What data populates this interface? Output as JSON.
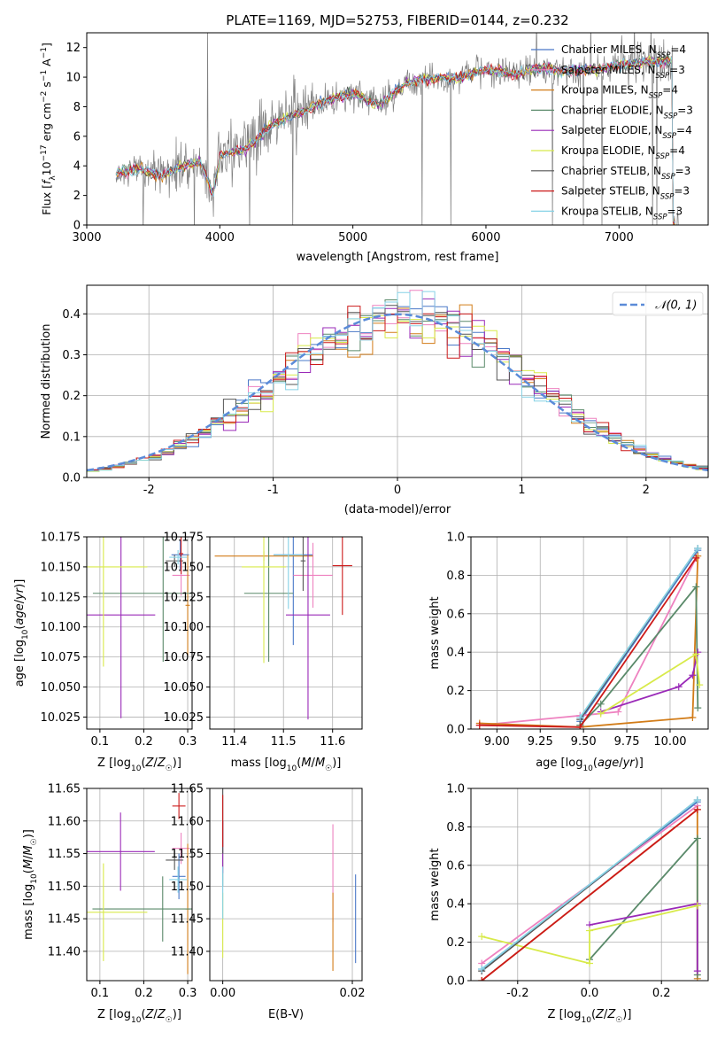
{
  "chart_data": [
    {
      "id": "spectrum",
      "type": "line",
      "title": "PLATE=1169, MJD=52753, FIBERID=0144, z=0.232",
      "xlabel": "wavelength [Angstrom, rest frame]",
      "ylabel": "Flux [f_λ10^-17 erg cm^-2 s^-1 A^-1]",
      "xlim": [
        3000,
        7670
      ],
      "ylim": [
        0,
        13
      ],
      "xticks": [
        3000,
        4000,
        5000,
        6000,
        7000
      ],
      "yticks": [
        0,
        2,
        4,
        6,
        8,
        10,
        12
      ],
      "legend_position": "right",
      "series": [
        {
          "name": "Chabrier MILES, N_SSP=4",
          "color": "#4a78c8"
        },
        {
          "name": "Salpeter MILES, N_SSP=3",
          "color": "#ee82c0"
        },
        {
          "name": "Kroupa MILES, N_SSP=4",
          "color": "#d27c18"
        },
        {
          "name": "Chabrier ELODIE, N_SSP=3",
          "color": "#5a8a6a"
        },
        {
          "name": "Salpeter ELODIE, N_SSP=4",
          "color": "#9a2ab8"
        },
        {
          "name": "Kroupa ELODIE, N_SSP=4",
          "color": "#d8ea4a"
        },
        {
          "name": "Chabrier STELIB, N_SSP=3",
          "color": "#555555"
        },
        {
          "name": "Salpeter STELIB, N_SSP=3",
          "color": "#cc1a1a"
        },
        {
          "name": "Kroupa STELIB, N_SSP=3",
          "color": "#86d2e6"
        }
      ],
      "data_color": "#808080",
      "continuum": [
        [
          3220,
          3.5
        ],
        [
          3400,
          3.8
        ],
        [
          3550,
          3.3
        ],
        [
          3700,
          3.9
        ],
        [
          3850,
          4.3
        ],
        [
          3950,
          2.1
        ],
        [
          4000,
          4.7
        ],
        [
          4200,
          5.2
        ],
        [
          4400,
          6.8
        ],
        [
          4600,
          7.6
        ],
        [
          4800,
          8.4
        ],
        [
          5000,
          8.9
        ],
        [
          5200,
          8.1
        ],
        [
          5400,
          9.6
        ],
        [
          5600,
          9.9
        ],
        [
          5800,
          10.0
        ],
        [
          6000,
          10.5
        ],
        [
          6200,
          10.2
        ],
        [
          6400,
          10.6
        ],
        [
          6600,
          10.4
        ],
        [
          6800,
          10.5
        ],
        [
          7000,
          10.8
        ],
        [
          7200,
          11.0
        ],
        [
          7400,
          11.1
        ]
      ],
      "grid": false
    },
    {
      "id": "residuals",
      "type": "histogram",
      "xlabel": "(data-model)/error",
      "ylabel": "Normed distribution",
      "xlim": [
        -2.5,
        2.5
      ],
      "ylim": [
        0,
        0.47
      ],
      "xticks": [
        -2,
        -1,
        0,
        1,
        2
      ],
      "yticks": [
        0.0,
        0.1,
        0.2,
        0.3,
        0.4
      ],
      "legend": "𝒩(0, 1)",
      "legend_position": "top-right",
      "gaussian_color": "#5b8bd8",
      "grid": true
    },
    {
      "id": "age-vs-Z",
      "type": "scatter",
      "xlabel": "Z [log10(Z/Z☉)]",
      "ylabel": "age  [log10(age/yr)]",
      "xlim": [
        0.07,
        0.31
      ],
      "ylim": [
        10.015,
        10.175
      ],
      "xticks": [
        0.1,
        0.2,
        0.3
      ],
      "yticks": [
        10.025,
        10.05,
        10.075,
        10.1,
        10.125,
        10.15,
        10.175
      ],
      "points": [
        {
          "series": 0,
          "x": 0.283,
          "y": 10.16,
          "ex": 0.02,
          "ey": 0.012
        },
        {
          "series": 1,
          "x": 0.285,
          "y": 10.143,
          "ex": 0.02,
          "ey": 0.017
        },
        {
          "series": 2,
          "x": 0.3,
          "y": 10.118,
          "ex": 0.005,
          "ey": 0.042
        },
        {
          "series": 3,
          "x": 0.244,
          "y": 10.128,
          "ex": 0.16,
          "ey": 0.057
        },
        {
          "series": 4,
          "x": 0.148,
          "y": 10.11,
          "ex": 0.078,
          "ey": 0.086
        },
        {
          "series": 5,
          "x": 0.108,
          "y": 10.15,
          "ex": 0.1,
          "ey": 0.083
        },
        {
          "series": 6,
          "x": 0.27,
          "y": 10.155,
          "ex": 0.02,
          "ey": 0.005
        },
        {
          "series": 7,
          "x": 0.285,
          "y": 10.161,
          "ex": 0.005,
          "ey": 0.017
        },
        {
          "series": 8,
          "x": 0.278,
          "y": 10.158,
          "ex": 0.02,
          "ey": 0.006
        }
      ],
      "grid": true
    },
    {
      "id": "age-vs-mass",
      "type": "scatter",
      "xlabel": "mass [log10(M/M☉)]",
      "ylabel": "",
      "xlim": [
        11.35,
        11.66
      ],
      "ylim": [
        10.015,
        10.175
      ],
      "xticks": [
        11.4,
        11.5,
        11.6
      ],
      "yticks": [
        10.025,
        10.05,
        10.075,
        10.1,
        10.125,
        10.15,
        10.175
      ],
      "points": [
        {
          "series": 0,
          "x": 11.52,
          "y": 10.16,
          "ex": 0.04,
          "ey": 0.075
        },
        {
          "series": 1,
          "x": 11.56,
          "y": 10.143,
          "ex": 0.04,
          "ey": 0.027
        },
        {
          "series": 2,
          "x": 11.46,
          "y": 10.159,
          "ex": 0.1,
          "ey": 0.004
        },
        {
          "series": 3,
          "x": 11.47,
          "y": 10.128,
          "ex": 0.05,
          "ey": 0.057
        },
        {
          "series": 4,
          "x": 11.55,
          "y": 10.11,
          "ex": 0.045,
          "ey": 0.087
        },
        {
          "series": 5,
          "x": 11.46,
          "y": 10.15,
          "ex": 0.045,
          "ey": 0.08
        },
        {
          "series": 6,
          "x": 11.54,
          "y": 10.155,
          "ex": 0.005,
          "ey": 0.025
        },
        {
          "series": 7,
          "x": 11.62,
          "y": 10.151,
          "ex": 0.02,
          "ey": 0.041
        },
        {
          "series": 8,
          "x": 11.51,
          "y": 10.16,
          "ex": 0.03,
          "ey": 0.045
        }
      ],
      "grid": true
    },
    {
      "id": "weight-vs-age",
      "type": "line",
      "xlabel": "age  [log10(age/yr)]",
      "ylabel": "mass weight",
      "xlim": [
        8.85,
        10.22
      ],
      "ylim": [
        0,
        1.0
      ],
      "xticks": [
        9.0,
        9.25,
        9.5,
        9.75,
        10.0
      ],
      "yticks": [
        0.0,
        0.2,
        0.4,
        0.6,
        0.8,
        1.0
      ],
      "series": [
        {
          "series": 0,
          "x": [
            9.48,
            10.16
          ],
          "y": [
            0.04,
            0.93
          ]
        },
        {
          "series": 1,
          "x": [
            8.9,
            9.48,
            9.7,
            10.15
          ],
          "y": [
            0.02,
            0.07,
            0.09,
            0.89
          ]
        },
        {
          "series": 2,
          "x": [
            8.9,
            9.48,
            10.13,
            10.16
          ],
          "y": [
            0.03,
            0.01,
            0.06,
            0.9
          ]
        },
        {
          "series": 3,
          "x": [
            9.48,
            9.6,
            10.15,
            10.16
          ],
          "y": [
            0.02,
            0.13,
            0.74,
            0.11
          ]
        },
        {
          "series": 4,
          "x": [
            9.6,
            10.05,
            10.13,
            10.16
          ],
          "y": [
            0.09,
            0.22,
            0.28,
            0.4
          ]
        },
        {
          "series": 5,
          "x": [
            9.6,
            10.15,
            10.17
          ],
          "y": [
            0.08,
            0.39,
            0.23
          ]
        },
        {
          "series": 6,
          "x": [
            9.48,
            10.16
          ],
          "y": [
            0.05,
            0.94
          ]
        },
        {
          "series": 7,
          "x": [
            8.9,
            9.48,
            10.15
          ],
          "y": [
            0.02,
            0.01,
            0.89
          ]
        },
        {
          "series": 8,
          "x": [
            9.48,
            10.16
          ],
          "y": [
            0.06,
            0.94
          ]
        }
      ],
      "grid": true
    },
    {
      "id": "mass-vs-Z",
      "type": "scatter",
      "xlabel": "Z [log10(Z/Z☉)]",
      "ylabel": "mass [log10(M/M☉)]",
      "xlim": [
        0.07,
        0.31
      ],
      "ylim": [
        11.355,
        11.65
      ],
      "xticks": [
        0.1,
        0.2,
        0.3
      ],
      "yticks": [
        11.4,
        11.45,
        11.5,
        11.55,
        11.6,
        11.65
      ],
      "points": [
        {
          "series": 0,
          "x": 0.28,
          "y": 11.515,
          "ex": 0.015,
          "ey": 0.035
        },
        {
          "series": 1,
          "x": 0.285,
          "y": 11.558,
          "ex": 0.02,
          "ey": 0.024
        },
        {
          "series": 2,
          "x": 0.3,
          "y": 11.465,
          "ex": 0.005,
          "ey": 0.1
        },
        {
          "series": 3,
          "x": 0.243,
          "y": 11.465,
          "ex": 0.16,
          "ey": 0.05
        },
        {
          "series": 4,
          "x": 0.147,
          "y": 11.553,
          "ex": 0.078,
          "ey": 0.06
        },
        {
          "series": 5,
          "x": 0.108,
          "y": 11.46,
          "ex": 0.1,
          "ey": 0.075
        },
        {
          "series": 6,
          "x": 0.27,
          "y": 11.54,
          "ex": 0.02,
          "ey": 0.015
        },
        {
          "series": 7,
          "x": 0.28,
          "y": 11.623,
          "ex": 0.015,
          "ey": 0.02
        },
        {
          "series": 8,
          "x": 0.278,
          "y": 11.51,
          "ex": 0.02,
          "ey": 0.02
        }
      ],
      "grid": true
    },
    {
      "id": "mass-vs-ebv",
      "type": "scatter",
      "xlabel": "E(B-V)",
      "ylabel": "",
      "xlim": [
        -0.002,
        0.0215
      ],
      "ylim": [
        11.355,
        11.65
      ],
      "xticks": [
        0.0,
        0.02
      ],
      "yticks": [
        11.4,
        11.45,
        11.5,
        11.55,
        11.6,
        11.65
      ],
      "points": [
        {
          "series": 0,
          "x": 0.0205,
          "y": 11.45,
          "ex": 0,
          "ey": 0.068
        },
        {
          "series": 1,
          "x": 0.017,
          "y": 11.52,
          "ex": 0,
          "ey": 0.075
        },
        {
          "series": 2,
          "x": 0.017,
          "y": 11.43,
          "ex": 0,
          "ey": 0.06
        },
        {
          "series": 3,
          "x": 0.0,
          "y": 11.55,
          "ex": 0,
          "ey": 0.05
        },
        {
          "series": 4,
          "x": 0.0,
          "y": 11.56,
          "ex": 0,
          "ey": 0.04
        },
        {
          "series": 5,
          "x": 0.0,
          "y": 11.44,
          "ex": 0,
          "ey": 0.05
        },
        {
          "series": 6,
          "x": 0.0,
          "y": 11.6,
          "ex": 0,
          "ey": 0.05
        },
        {
          "series": 7,
          "x": 0.0,
          "y": 11.6,
          "ex": 0,
          "ey": 0.04
        },
        {
          "series": 8,
          "x": 0.0,
          "y": 11.49,
          "ex": 0,
          "ey": 0.04
        }
      ],
      "grid": true
    },
    {
      "id": "weight-vs-Z",
      "type": "line",
      "xlabel": "Z [log10(Z/Z☉)]",
      "ylabel": "mass weight",
      "xlim": [
        -0.33,
        0.33
      ],
      "ylim": [
        0,
        1.0
      ],
      "xticks": [
        -0.2,
        0.0,
        0.2
      ],
      "yticks": [
        0.0,
        0.2,
        0.4,
        0.6,
        0.8,
        1.0
      ],
      "series": [
        {
          "series": 0,
          "x": [
            -0.3,
            0.3
          ],
          "y": [
            0.06,
            0.93
          ]
        },
        {
          "series": 1,
          "x": [
            -0.3,
            0.3
          ],
          "y": [
            0.09,
            0.91
          ]
        },
        {
          "series": 2,
          "x": [
            -0.3,
            0.3,
            0.3
          ],
          "y": [
            0.0,
            0.89,
            0.01
          ]
        },
        {
          "series": 3,
          "x": [
            0.0,
            0.3,
            0.3
          ],
          "y": [
            0.11,
            0.74,
            0.03
          ]
        },
        {
          "series": 4,
          "x": [
            0.0,
            0.3,
            0.3
          ],
          "y": [
            0.29,
            0.4,
            0.05
          ]
        },
        {
          "series": 5,
          "x": [
            -0.3,
            0.0,
            0.0,
            0.3
          ],
          "y": [
            0.23,
            0.09,
            0.26,
            0.39
          ]
        },
        {
          "series": 6,
          "x": [
            -0.3,
            0.3
          ],
          "y": [
            0.05,
            0.94
          ]
        },
        {
          "series": 7,
          "x": [
            -0.3,
            0.3
          ],
          "y": [
            0.0,
            0.89
          ]
        },
        {
          "series": 8,
          "x": [
            -0.3,
            0.3
          ],
          "y": [
            0.06,
            0.94
          ]
        }
      ],
      "grid": true
    }
  ]
}
